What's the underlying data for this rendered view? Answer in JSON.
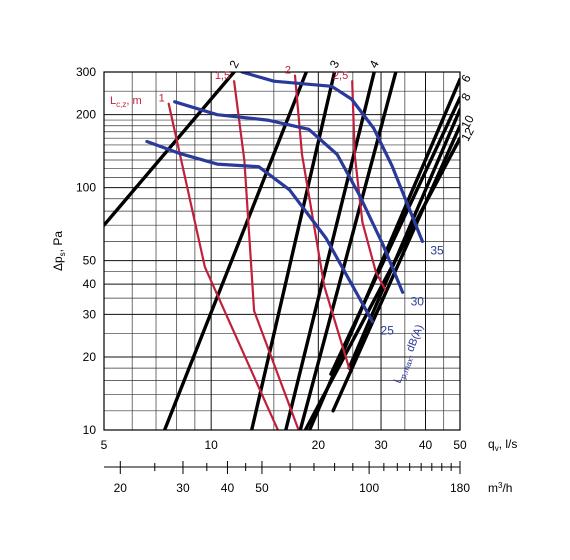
{
  "chart_data": {
    "type": "line",
    "title": "",
    "x_scale": "log",
    "y_scale": "log",
    "xlim": [
      5,
      50
    ],
    "ylim": [
      10,
      300
    ],
    "xlabel": "qv, l/s",
    "xlabel_parts": {
      "main": "q",
      "sub": "v",
      "unit": ", l/s"
    },
    "ylabel": "Δps, Pa",
    "ylabel_parts": {
      "main": "Δp",
      "sub": "s",
      "unit": ", Pa"
    },
    "x_tick_labels": [
      {
        "value": 5,
        "label": "5"
      },
      {
        "value": 10,
        "label": "10"
      },
      {
        "value": 20,
        "label": "20"
      },
      {
        "value": 30,
        "label": "30"
      },
      {
        "value": 40,
        "label": "40"
      },
      {
        "value": 50,
        "label": "50"
      }
    ],
    "x_grid": [
      6,
      7,
      8,
      9,
      15,
      25,
      35,
      45
    ],
    "y_tick_labels": [
      {
        "value": 10,
        "label": "10"
      },
      {
        "value": 20,
        "label": "20"
      },
      {
        "value": 30,
        "label": "30"
      },
      {
        "value": 40,
        "label": "40"
      },
      {
        "value": 50,
        "label": "50"
      },
      {
        "value": 100,
        "label": "100"
      },
      {
        "value": 200,
        "label": "200"
      },
      {
        "value": 300,
        "label": "300"
      }
    ],
    "y_grid": [
      12,
      14,
      16,
      18,
      25,
      35,
      45,
      60,
      70,
      80,
      90,
      110,
      120,
      130,
      140,
      150,
      160,
      170,
      180,
      190,
      250
    ],
    "secondary_axis": {
      "unit": "m³/h",
      "unit_parts": {
        "main": "m",
        "sup": "3",
        "rest": "/h"
      },
      "factor_per_ls": 3.6,
      "tick_values": [
        20,
        25,
        30,
        35,
        40,
        45,
        50,
        60,
        70,
        80,
        90,
        100,
        110,
        120,
        130,
        140,
        150,
        160,
        170,
        180
      ],
      "labels": [
        {
          "value": 20,
          "label": "20"
        },
        {
          "value": 30,
          "label": "30"
        },
        {
          "value": 40,
          "label": "40"
        },
        {
          "value": 50,
          "label": "50"
        },
        {
          "value": 100,
          "label": "100"
        },
        {
          "value": 180,
          "label": "180"
        }
      ]
    },
    "series": [
      {
        "group": "duct-size",
        "color": "#000000",
        "lines": [
          {
            "label": "2",
            "points": [
              [
                5,
                70
              ],
              [
                11.6,
                300
              ]
            ]
          },
          {
            "label": "",
            "points": [
              [
                7.4,
                10
              ],
              [
                18.5,
                300
              ]
            ]
          },
          {
            "label": "3",
            "points": [
              [
                13.0,
                10
              ],
              [
                22.2,
                300
              ]
            ]
          },
          {
            "label": "4",
            "points": [
              [
                16.2,
                10
              ],
              [
                28.7,
                300
              ]
            ]
          },
          {
            "label": "",
            "points": [
              [
                17.8,
                10
              ],
              [
                33.0,
                300
              ]
            ]
          },
          {
            "label": "6",
            "points": [
              [
                18.9,
                10
              ],
              [
                50,
                280
              ]
            ]
          },
          {
            "label": "8",
            "points": [
              [
                21.7,
                17
              ],
              [
                50,
                235
              ]
            ]
          },
          {
            "label": "",
            "points": [
              [
                24.4,
                18
              ],
              [
                50,
                210
              ]
            ]
          },
          {
            "label": "10",
            "points": [
              [
                22.0,
                12
              ],
              [
                50,
                180
              ]
            ]
          },
          {
            "label": "12",
            "points": [
              [
                18.4,
                10
              ],
              [
                50,
                160
              ]
            ]
          }
        ]
      },
      {
        "group": "throw-length",
        "name": "Lc,z, m",
        "name_parts": {
          "main": "L",
          "sub": "c,z",
          "unit": ", m"
        },
        "color": "#c0203c",
        "lines": [
          {
            "label": "1",
            "points": [
              [
                7.6,
                222
              ],
              [
                9.6,
                47
              ],
              [
                15.4,
                10
              ]
            ]
          },
          {
            "label": "1,5",
            "points": [
              [
                11.6,
                275
              ],
              [
                12.4,
                129
              ],
              [
                13.2,
                31
              ],
              [
                17.6,
                10
              ]
            ]
          },
          {
            "label": "2",
            "points": [
              [
                17.2,
                290
              ],
              [
                18.0,
                137
              ],
              [
                20.8,
                39
              ],
              [
                24.4,
                18
              ]
            ]
          },
          {
            "label": "2,5",
            "points": [
              [
                24.9,
                275
              ],
              [
                25.3,
                137
              ],
              [
                26.6,
                72
              ],
              [
                29.0,
                45
              ],
              [
                30.8,
                38
              ]
            ]
          }
        ]
      },
      {
        "group": "sound-level",
        "name": "Lp,max, dB(A)",
        "name_parts": {
          "main": "L",
          "sub": "p,max",
          "unit": ", dB(A)"
        },
        "color": "#2a3a9a",
        "lines": [
          {
            "label": "25",
            "points": [
              [
                6.6,
                155
              ],
              [
                8.2,
                138
              ],
              [
                10.4,
                125
              ],
              [
                13.6,
                122
              ],
              [
                16.6,
                98
              ],
              [
                21.0,
                62
              ],
              [
                28.4,
                28
              ]
            ]
          },
          {
            "label": "30",
            "points": [
              [
                7.9,
                226
              ],
              [
                10.4,
                200
              ],
              [
                14.4,
                190
              ],
              [
                18.8,
                174
              ],
              [
                22.6,
                137
              ],
              [
                26.0,
                94
              ],
              [
                30.4,
                58
              ],
              [
                34.5,
                37
              ]
            ]
          },
          {
            "label": "35",
            "points": [
              [
                12.2,
                300
              ],
              [
                15.0,
                275
              ],
              [
                21.8,
                262
              ],
              [
                24.8,
                232
              ],
              [
                28.6,
                176
              ],
              [
                32.2,
                123
              ],
              [
                39.2,
                60
              ]
            ]
          }
        ]
      }
    ]
  }
}
